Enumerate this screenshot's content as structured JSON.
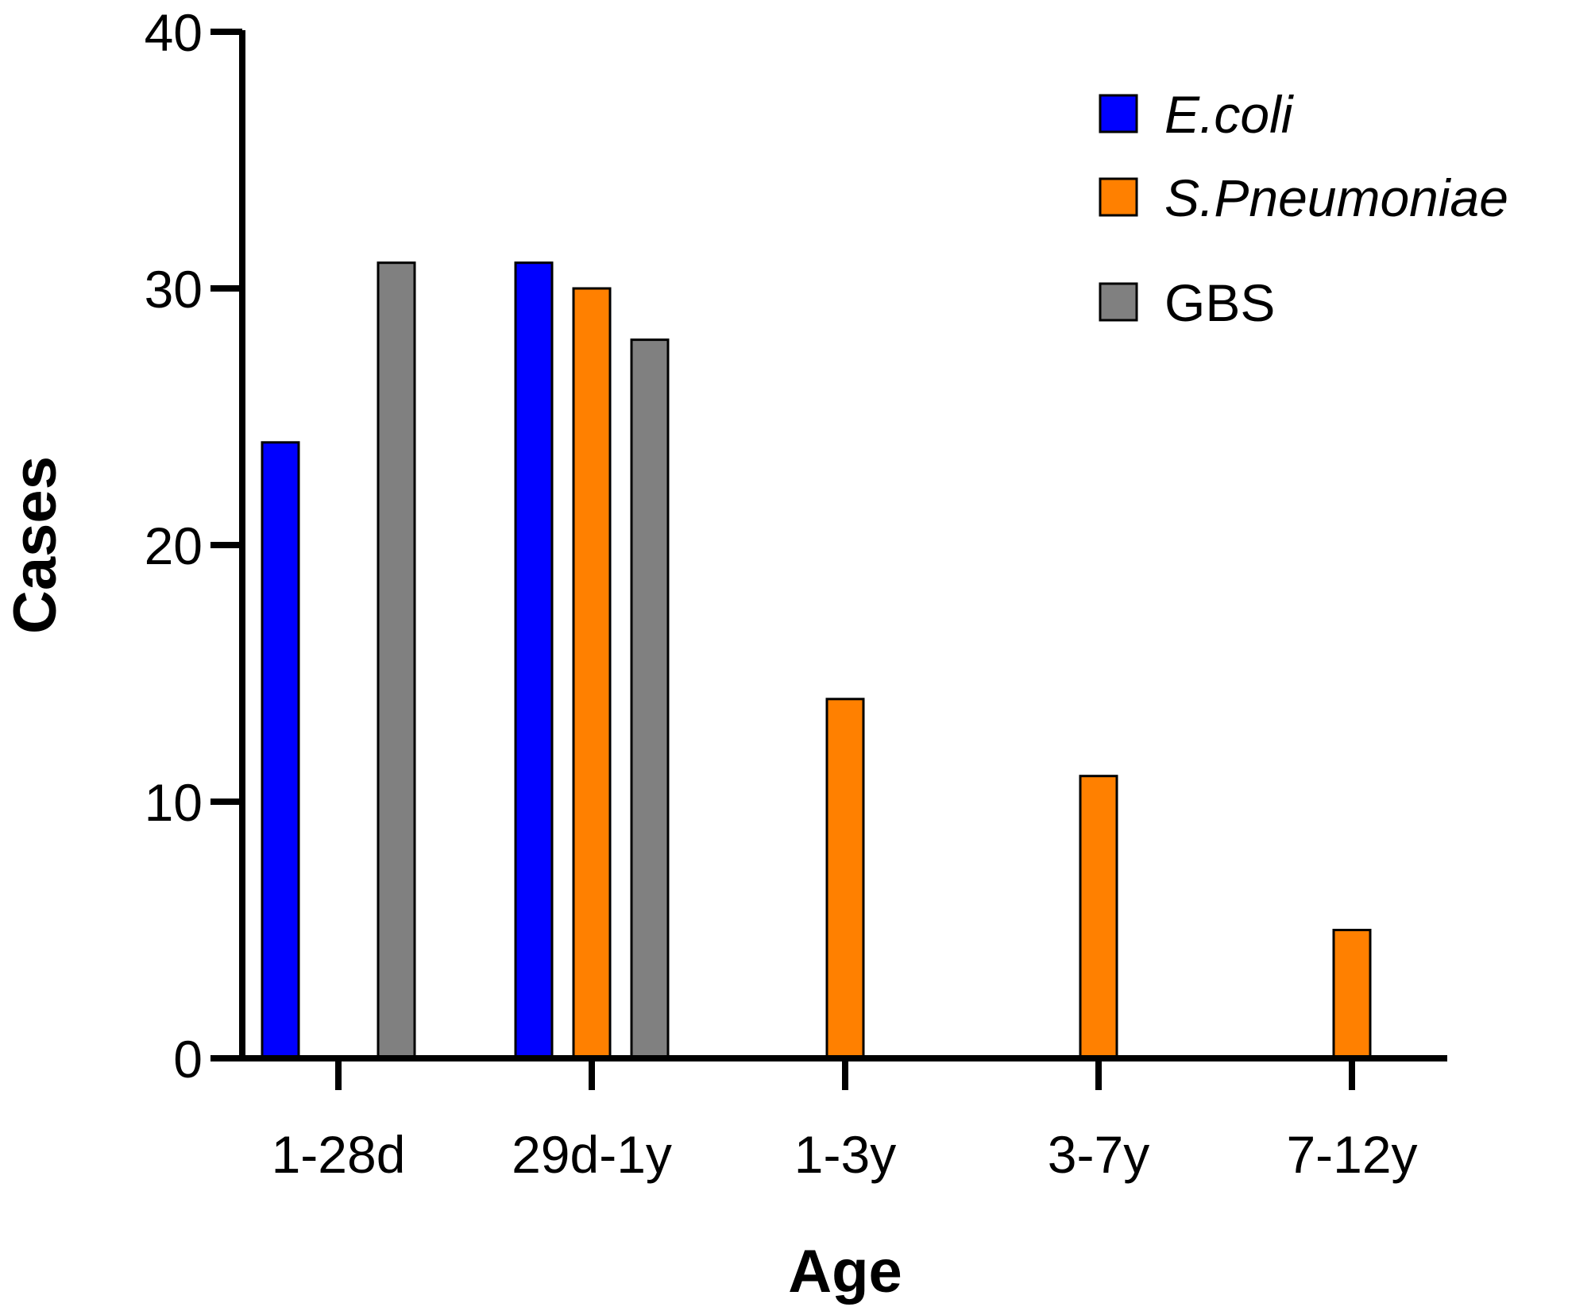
{
  "chart_data": {
    "type": "bar",
    "title": "",
    "xlabel": "Age",
    "ylabel": "Cases",
    "ylim": [
      0,
      40
    ],
    "yticks": [
      0,
      10,
      20,
      30,
      40
    ],
    "categories": [
      "1-28d",
      "29d-1y",
      "1-3y",
      "3-7y",
      "7-12y"
    ],
    "series": [
      {
        "name": "E.coli",
        "italic": true,
        "color": "#0000ff",
        "values": [
          24,
          31,
          0,
          0,
          0
        ]
      },
      {
        "name": "S.Pneumoniae",
        "italic": true,
        "color": "#ff8000",
        "values": [
          0,
          30,
          14,
          11,
          5
        ]
      },
      {
        "name": "GBS",
        "italic": false,
        "color": "#808080",
        "values": [
          31,
          28,
          0,
          0,
          0
        ]
      }
    ],
    "legend_position": "top-right",
    "grid": false
  }
}
